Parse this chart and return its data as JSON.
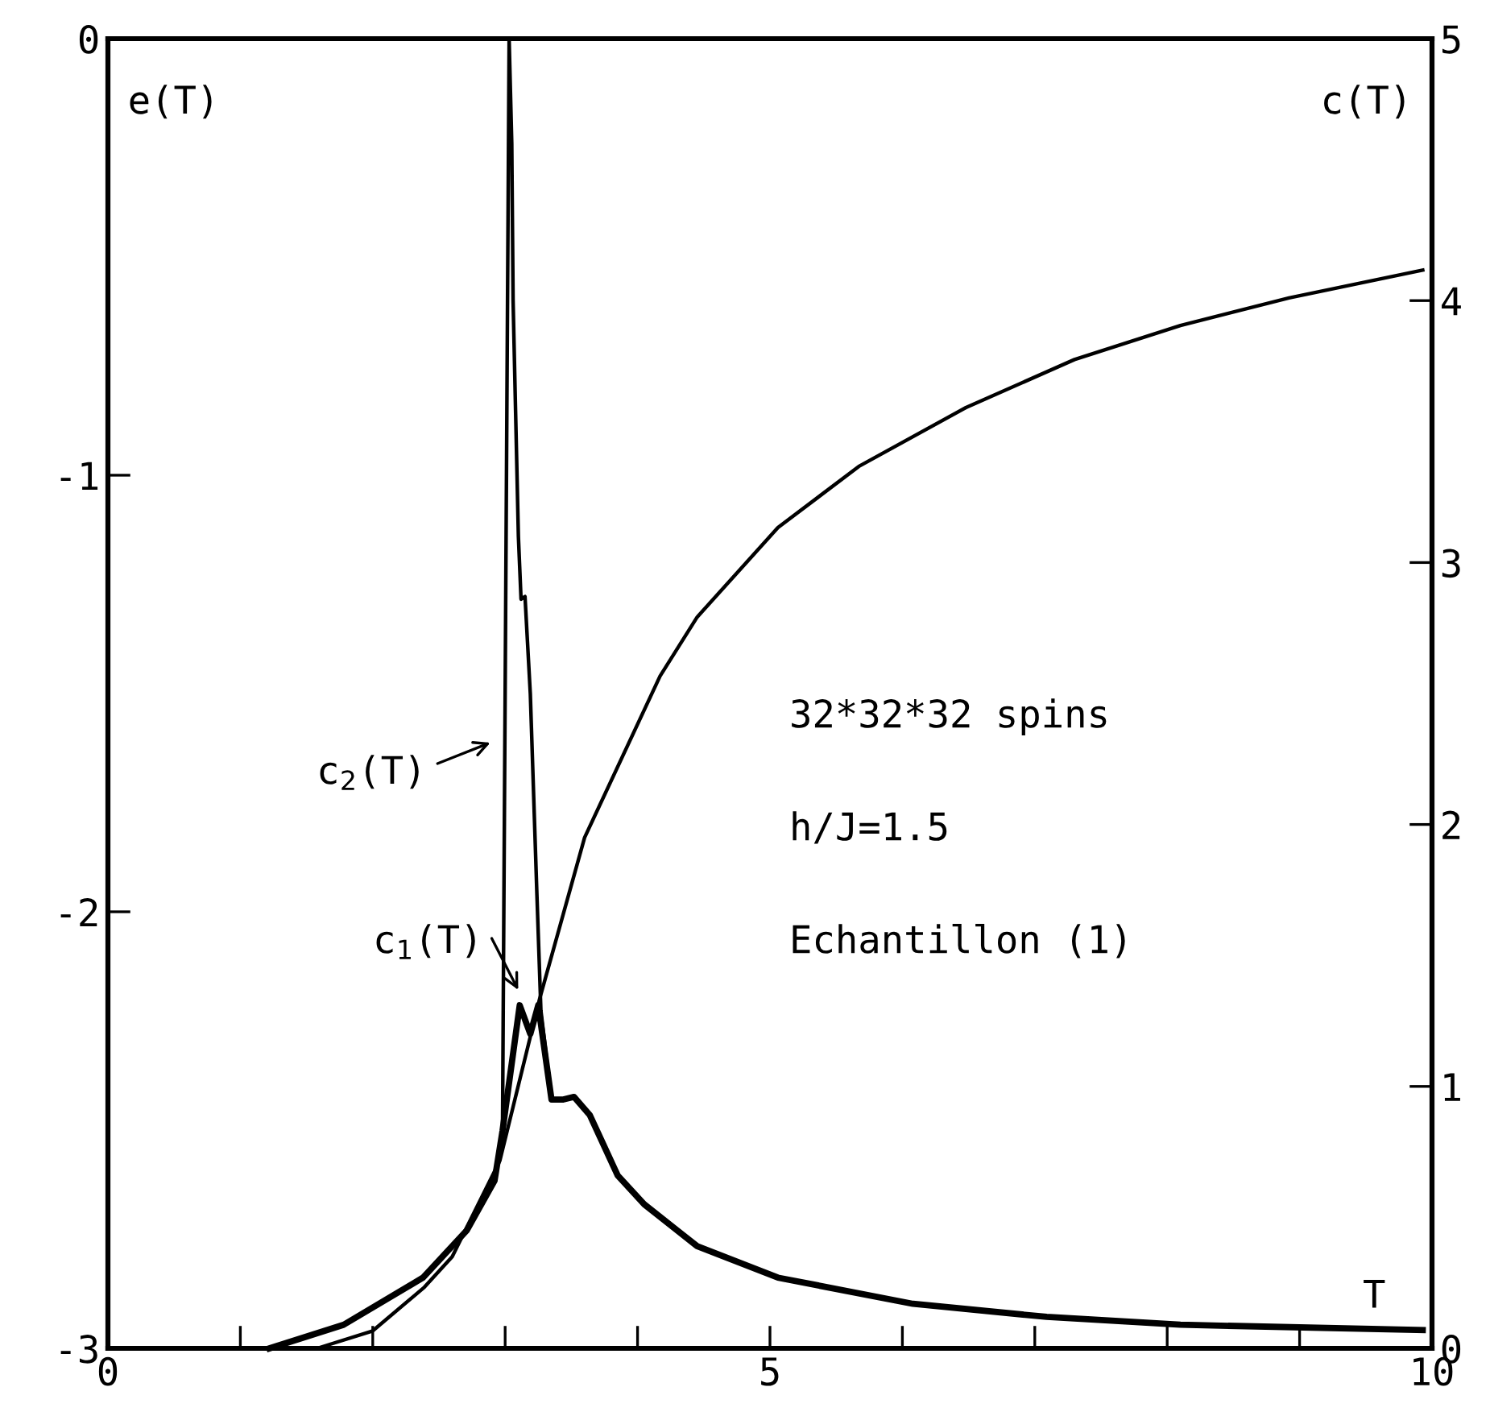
{
  "chart_data": {
    "type": "line",
    "xlabel": "T",
    "ylabel": "e(T)",
    "y2label": "c(T)",
    "xlim": [
      0,
      10
    ],
    "xticks": [
      0,
      {
        "value": 1,
        "label": null
      },
      {
        "value": 2,
        "label": null
      },
      {
        "value": 3,
        "label": null
      },
      {
        "value": 4,
        "label": null
      },
      5,
      {
        "value": 6,
        "label": null
      },
      {
        "value": 7,
        "label": null
      },
      {
        "value": 8,
        "label": null
      },
      {
        "value": 9,
        "label": null
      },
      10
    ],
    "ylim": [
      -3,
      0
    ],
    "yticks": [
      -3,
      -2,
      -1,
      0
    ],
    "y2lim": [
      0,
      5
    ],
    "y2ticks": [
      0,
      1,
      2,
      3,
      4,
      5
    ],
    "grid": false,
    "legend": false,
    "marker": "none",
    "line_style": "solid",
    "series": [
      {
        "color": "#000000",
        "axis": "y",
        "x": [
          1.2,
          1.58,
          2.0,
          2.39,
          2.6,
          2.96,
          3.26,
          3.6,
          4.17,
          4.45,
          5.06,
          5.67,
          6.48,
          7.3,
          8.1,
          8.92,
          9.93
        ],
        "values": [
          -3.0,
          -3.0,
          -2.96,
          -2.86,
          -2.79,
          -2.57,
          -2.2,
          -1.83,
          -1.46,
          -1.325,
          -1.12,
          -0.98,
          -0.845,
          -0.735,
          -0.657,
          -0.594,
          -0.53
        ]
      },
      {
        "color": "#000000",
        "axis": "y2",
        "x": [
          1.22,
          1.78,
          2.38,
          2.71,
          2.92,
          2.98,
          3.11,
          3.19,
          3.25,
          3.35,
          3.44,
          3.52,
          3.64,
          3.85,
          4.05,
          4.45,
          5.06,
          6.08,
          7.09,
          8.1,
          9.93
        ],
        "values": [
          0.0,
          0.09,
          0.27,
          0.45,
          0.64,
          0.83,
          1.31,
          1.2,
          1.31,
          0.95,
          0.95,
          0.96,
          0.89,
          0.66,
          0.55,
          0.39,
          0.27,
          0.17,
          0.12,
          0.09,
          0.07
        ]
      },
      {
        "color": "#000000",
        "axis": "y2",
        "x": [
          1.22,
          1.78,
          2.38,
          2.71,
          2.92,
          2.98,
          3.03,
          3.05,
          3.06,
          3.1,
          3.12,
          3.15,
          3.19,
          3.24,
          3.27,
          3.35,
          3.44,
          3.52,
          3.64,
          3.85,
          4.05,
          4.45,
          5.06,
          6.08,
          7.09,
          8.1,
          9.93
        ],
        "values": [
          0.0,
          0.09,
          0.27,
          0.45,
          0.64,
          0.83,
          5.0,
          4.6,
          4.0,
          3.1,
          2.86,
          2.87,
          2.5,
          1.73,
          1.29,
          0.95,
          0.95,
          0.96,
          0.89,
          0.66,
          0.55,
          0.39,
          0.27,
          0.17,
          0.12,
          0.09,
          0.07
        ]
      }
    ],
    "annotations": [
      "32*32*32 spins",
      "h/J=1.5",
      "Echantillon (1)",
      "c$_{2}$(T)",
      "c$_{1}$(T)"
    ]
  }
}
